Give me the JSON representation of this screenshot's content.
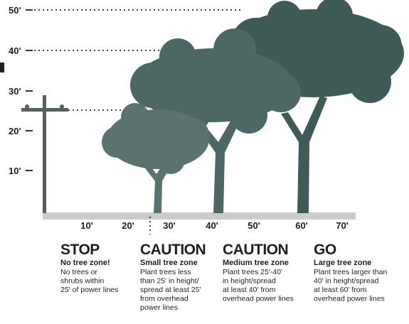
{
  "height_labels": [
    "10'",
    "20'",
    "30'",
    "40'",
    "50'"
  ],
  "distance_labels": [
    "10'",
    "20'",
    "30'",
    "40'",
    "50'",
    "60'",
    "70'"
  ],
  "zones": [
    {
      "heading": "STOP",
      "subheading": "No tree zone!",
      "lines": [
        "No trees or",
        "shrubs within",
        "25' of power lines"
      ]
    },
    {
      "heading": "CAUTION",
      "subheading": "Small tree zone",
      "lines": [
        "Plant trees less",
        "than 25' in height/",
        "spread at least 25'",
        "from overhead",
        "power lines"
      ]
    },
    {
      "heading": "CAUTION",
      "subheading": "Medium tree zone",
      "lines": [
        "Plant trees 25'-40'",
        "in height/spread",
        "at least 40' from",
        "overhead power lines"
      ]
    },
    {
      "heading": "GO",
      "subheading": "Large tree zone",
      "lines": [
        "Plant trees larger than",
        "40' in height/spread",
        "at least 60' from",
        "overhead power lines"
      ]
    }
  ]
}
